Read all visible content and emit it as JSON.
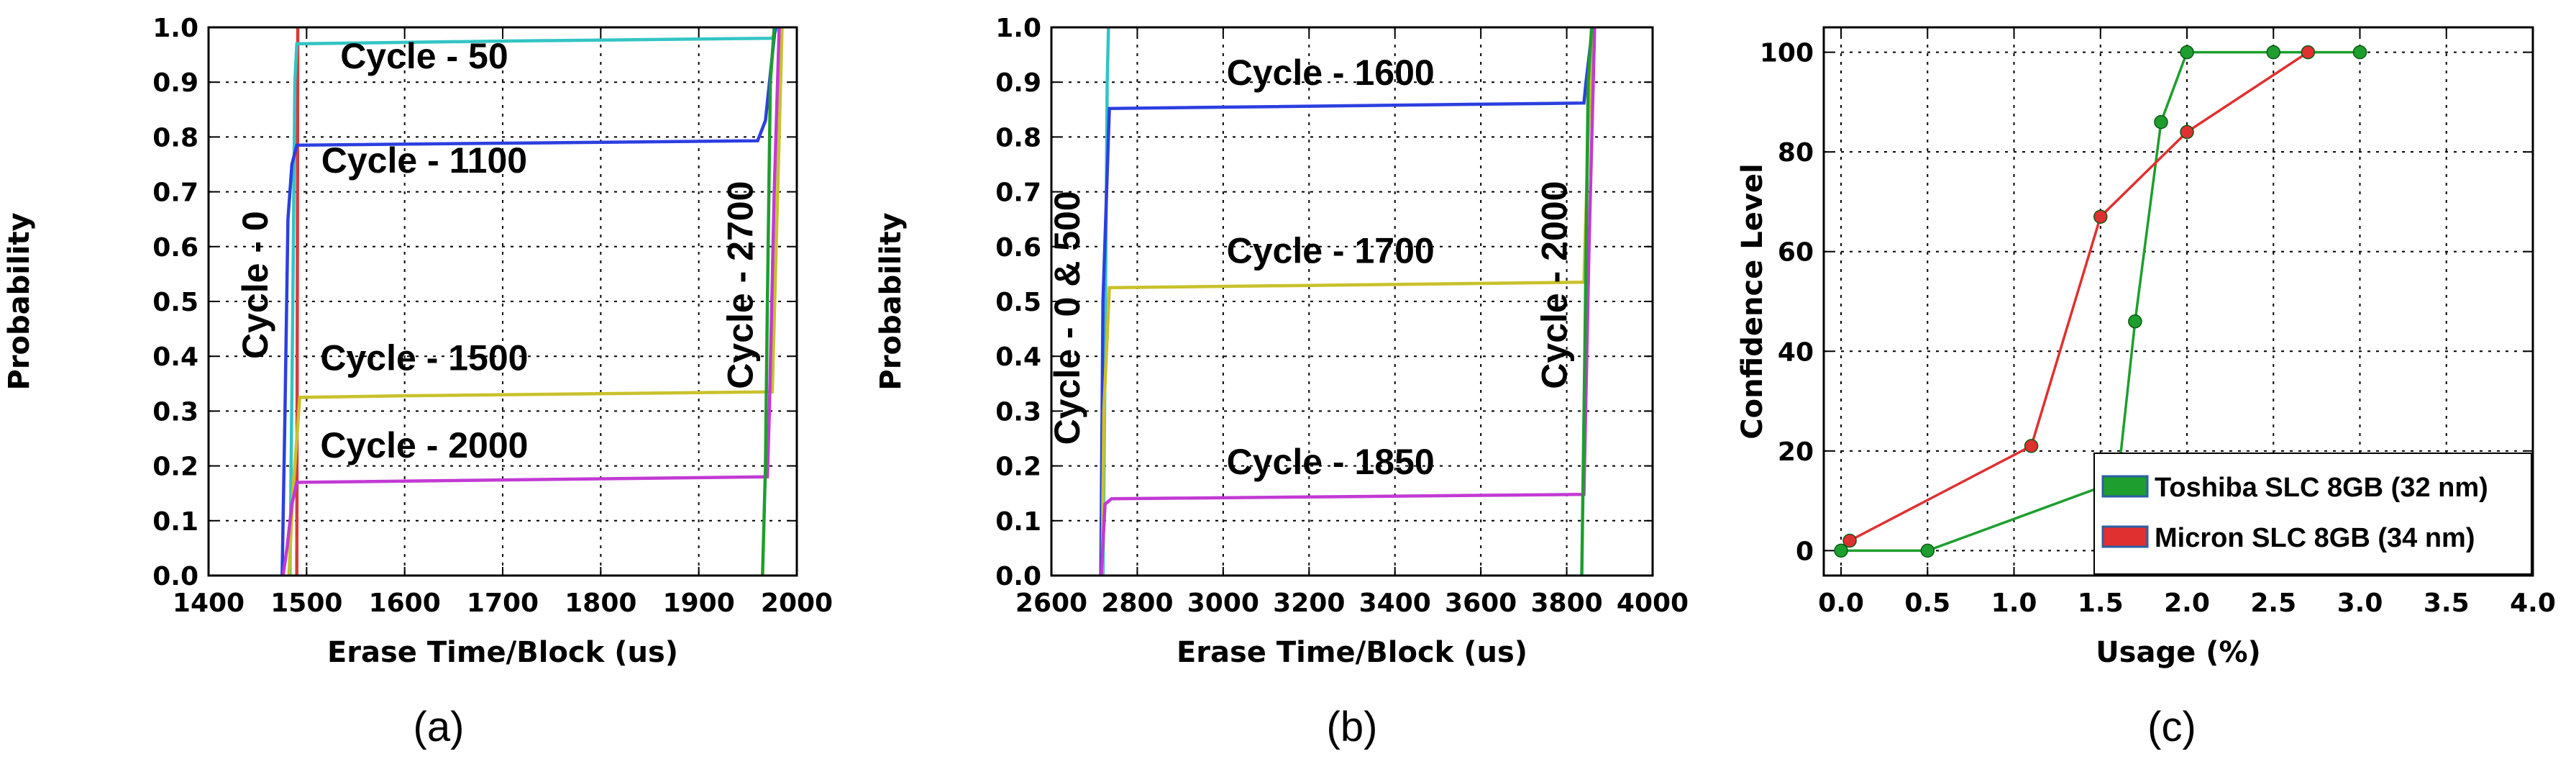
{
  "chart_data": [
    {
      "panel_label": "(a)",
      "type": "line",
      "xlabel": "Erase Time/Block (us)",
      "ylabel": "Probability",
      "xlim": [
        1400,
        2000
      ],
      "ylim": [
        0.0,
        1.0
      ],
      "xticks": [
        "1400",
        "1500",
        "1600",
        "1700",
        "1800",
        "1900",
        "2000"
      ],
      "yticks": [
        "0.0",
        "0.1",
        "0.2",
        "0.3",
        "0.4",
        "0.5",
        "0.6",
        "0.7",
        "0.8",
        "0.9",
        "1.0"
      ],
      "grid": true,
      "series": [
        {
          "color": "#d63a3a",
          "points": [
            [
              1490,
              0.0
            ],
            [
              1491,
              1.0
            ]
          ]
        },
        {
          "color": "#33c4c4",
          "points": [
            [
              1483,
              0.0
            ],
            [
              1486,
              0.5
            ],
            [
              1488,
              0.9
            ],
            [
              1490,
              0.97
            ],
            [
              1700,
              0.975
            ],
            [
              1975,
              0.98
            ],
            [
              1980,
              1.0
            ]
          ]
        },
        {
          "color": "#2b3fe0",
          "points": [
            [
              1475,
              0.0
            ],
            [
              1478,
              0.3
            ],
            [
              1481,
              0.65
            ],
            [
              1485,
              0.75
            ],
            [
              1490,
              0.785
            ],
            [
              1960,
              0.793
            ],
            [
              1968,
              0.83
            ],
            [
              1978,
              1.0
            ]
          ]
        },
        {
          "color": "#c9c12c",
          "points": [
            [
              1482,
              0.0
            ],
            [
              1486,
              0.15
            ],
            [
              1490,
              0.25
            ],
            [
              1493,
              0.325
            ],
            [
              1600,
              0.328
            ],
            [
              1975,
              0.335
            ],
            [
              1985,
              1.0
            ]
          ]
        },
        {
          "color": "#c23ad4",
          "points": [
            [
              1476,
              0.0
            ],
            [
              1480,
              0.05
            ],
            [
              1485,
              0.13
            ],
            [
              1490,
              0.17
            ],
            [
              1970,
              0.18
            ],
            [
              1972,
              0.3
            ],
            [
              1977,
              0.7
            ],
            [
              1982,
              1.0
            ]
          ]
        },
        {
          "color": "#1e9e2e",
          "points": [
            [
              1965,
              0.0
            ],
            [
              1968,
              0.2
            ],
            [
              1970,
              0.5
            ],
            [
              1973,
              0.9
            ],
            [
              1977,
              1.0
            ]
          ]
        }
      ],
      "annotations": [
        "Cycle - 50",
        "Cycle - 1100",
        "Cycle - 1500",
        "Cycle - 2000",
        "Cycle - 0",
        "Cycle - 2700"
      ]
    },
    {
      "panel_label": "(b)",
      "type": "line",
      "xlabel": "Erase Time/Block (us)",
      "ylabel": "Probability",
      "xlim": [
        2600,
        4000
      ],
      "ylim": [
        0.0,
        1.0
      ],
      "xticks": [
        "2600",
        "2800",
        "3000",
        "3200",
        "3400",
        "3600",
        "3800",
        "4000"
      ],
      "yticks": [
        "0.0",
        "0.1",
        "0.2",
        "0.3",
        "0.4",
        "0.5",
        "0.6",
        "0.7",
        "0.8",
        "0.9",
        "1.0"
      ],
      "grid": true,
      "series": [
        {
          "color": "#33c4c4",
          "points": [
            [
              2720,
              0.0
            ],
            [
              2725,
              0.4
            ],
            [
              2730,
              0.9
            ],
            [
              2733,
              1.0
            ]
          ]
        },
        {
          "color": "#2b3fe0",
          "points": [
            [
              2715,
              0.0
            ],
            [
              2720,
              0.5
            ],
            [
              2735,
              0.852
            ],
            [
              3840,
              0.862
            ],
            [
              3845,
              0.9
            ],
            [
              3860,
              1.0
            ]
          ]
        },
        {
          "color": "#c9c12c",
          "points": [
            [
              2718,
              0.0
            ],
            [
              2722,
              0.3
            ],
            [
              2735,
              0.525
            ],
            [
              3840,
              0.535
            ],
            [
              3850,
              0.8
            ],
            [
              3862,
              1.0
            ]
          ]
        },
        {
          "color": "#c23ad4",
          "points": [
            [
              2716,
              0.0
            ],
            [
              2725,
              0.13
            ],
            [
              2740,
              0.14
            ],
            [
              3840,
              0.148
            ],
            [
              3852,
              0.6
            ],
            [
              3865,
              1.0
            ]
          ]
        },
        {
          "color": "#1e9e2e",
          "points": [
            [
              3835,
              0.0
            ],
            [
              3842,
              0.4
            ],
            [
              3850,
              0.9
            ],
            [
              3858,
              1.0
            ]
          ]
        }
      ],
      "annotations": [
        "Cycle - 1600",
        "Cycle - 1700",
        "Cycle - 1850",
        "Cycle - 0 & 500",
        "Cycle - 2000"
      ]
    },
    {
      "panel_label": "(c)",
      "type": "line",
      "xlabel": "Usage (%)",
      "ylabel": "Confidence Level",
      "xlim": [
        -0.1,
        4.0
      ],
      "ylim": [
        -5,
        105
      ],
      "xticks": [
        "0.0",
        "0.5",
        "1.0",
        "1.5",
        "2.0",
        "2.5",
        "3.0",
        "3.5",
        "4.0"
      ],
      "yticks": [
        "0",
        "20",
        "40",
        "60",
        "80",
        "100"
      ],
      "grid": true,
      "legend_position": "lower-right",
      "series": [
        {
          "name": "Toshiba SLC 8GB (32 nm)",
          "color": "#1e9e2e",
          "points": [
            [
              0.0,
              0
            ],
            [
              0.5,
              0
            ],
            [
              1.6,
              14
            ],
            [
              1.7,
              46
            ],
            [
              1.85,
              86
            ],
            [
              2.0,
              100
            ],
            [
              2.5,
              100
            ],
            [
              3.0,
              100
            ]
          ]
        },
        {
          "name": "Micron SLC 8GB (34 nm)",
          "color": "#e03030",
          "points": [
            [
              0.05,
              2
            ],
            [
              1.1,
              21
            ],
            [
              1.5,
              67
            ],
            [
              2.0,
              84
            ],
            [
              2.7,
              100
            ]
          ]
        }
      ]
    }
  ],
  "annotations_text": {
    "a": [
      "Cycle - 50",
      "Cycle - 1100",
      "Cycle - 1500",
      "Cycle - 2000",
      "Cycle - 0",
      "Cycle - 2700"
    ],
    "b": [
      "Cycle - 1600",
      "Cycle - 1700",
      "Cycle - 1850",
      "Cycle - 0 & 500",
      "Cycle - 2000"
    ]
  }
}
